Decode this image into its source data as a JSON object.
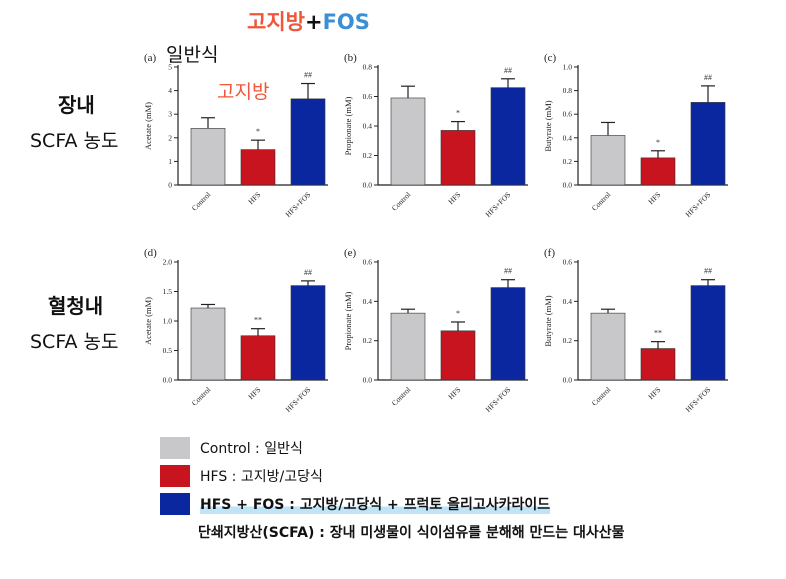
{
  "header": {
    "title_part1": "고지방",
    "title_plus": "+",
    "title_part2": "FOS",
    "panel_a_label": "일반식",
    "panel_a_hfs_label": "고지방"
  },
  "rows": [
    {
      "title": "장내",
      "subtitle": "SCFA 농도"
    },
    {
      "title": "혈청내",
      "subtitle": "SCFA 농도"
    }
  ],
  "colors": {
    "control": "#c8c8ca",
    "hfs": "#c8141e",
    "fos": "#0a27a0",
    "header_red": "#f0563a",
    "header_blue": "#3a8fd6"
  },
  "chart_data": [
    {
      "type": "bar",
      "panel": "(a)",
      "ylabel": "Acetate (mM)",
      "categories": [
        "Control",
        "HFS",
        "HFS+FOS"
      ],
      "values": [
        2.4,
        1.5,
        3.65
      ],
      "errors": [
        0.45,
        0.4,
        0.65
      ],
      "annotations": [
        "",
        "*",
        "##"
      ],
      "ylim": [
        0,
        5
      ],
      "ticks": [
        0,
        1,
        2,
        3,
        4,
        5
      ]
    },
    {
      "type": "bar",
      "panel": "(b)",
      "ylabel": "Propionate (mM)",
      "categories": [
        "Control",
        "HFS",
        "HFS+FOS"
      ],
      "values": [
        0.59,
        0.37,
        0.66
      ],
      "errors": [
        0.08,
        0.06,
        0.06
      ],
      "annotations": [
        "",
        "*",
        "##"
      ],
      "ylim": [
        0,
        0.8
      ],
      "ticks": [
        0.0,
        0.2,
        0.4,
        0.6,
        0.8
      ]
    },
    {
      "type": "bar",
      "panel": "(c)",
      "ylabel": "Butyrate (mM)",
      "categories": [
        "Control",
        "HFS",
        "HFS+FOS"
      ],
      "values": [
        0.42,
        0.23,
        0.7
      ],
      "errors": [
        0.11,
        0.06,
        0.14
      ],
      "annotations": [
        "",
        "*",
        "##"
      ],
      "ylim": [
        0,
        1.0
      ],
      "ticks": [
        0.0,
        0.2,
        0.4,
        0.6,
        0.8,
        1.0
      ]
    },
    {
      "type": "bar",
      "panel": "(d)",
      "ylabel": "Acetate (mM)",
      "categories": [
        "Control",
        "HFS",
        "HFS+FOS"
      ],
      "values": [
        1.22,
        0.75,
        1.6
      ],
      "errors": [
        0.06,
        0.12,
        0.08
      ],
      "annotations": [
        "",
        "**",
        "##"
      ],
      "ylim": [
        0,
        2.0
      ],
      "ticks": [
        0.0,
        0.5,
        1.0,
        1.5,
        2.0
      ]
    },
    {
      "type": "bar",
      "panel": "(e)",
      "ylabel": "Propionate (mM)",
      "categories": [
        "Control",
        "HFS",
        "HFS+FOS"
      ],
      "values": [
        0.34,
        0.25,
        0.47
      ],
      "errors": [
        0.02,
        0.045,
        0.04
      ],
      "annotations": [
        "",
        "*",
        "##"
      ],
      "ylim": [
        0,
        0.6
      ],
      "ticks": [
        0.0,
        0.2,
        0.4,
        0.6
      ]
    },
    {
      "type": "bar",
      "panel": "(f)",
      "ylabel": "Butyrate (mM)",
      "categories": [
        "Control",
        "HFS",
        "HFS+FOS"
      ],
      "values": [
        0.34,
        0.16,
        0.48
      ],
      "errors": [
        0.02,
        0.035,
        0.03
      ],
      "annotations": [
        "",
        "**",
        "##"
      ],
      "ylim": [
        0,
        0.6
      ],
      "ticks": [
        0.0,
        0.2,
        0.4,
        0.6
      ]
    }
  ],
  "legend": [
    {
      "label": "Control : 일반식",
      "color_key": "control"
    },
    {
      "label": "HFS : 고지방/고당식",
      "color_key": "hfs"
    },
    {
      "label": "HFS + FOS : 고지방/고당식 + 프럭토 올리고사카라이드",
      "color_key": "fos"
    }
  ],
  "footnote": "단쇄지방산(SCFA) : 장내 미생물이 식이섬유를 분해해 만드는 대사산물"
}
